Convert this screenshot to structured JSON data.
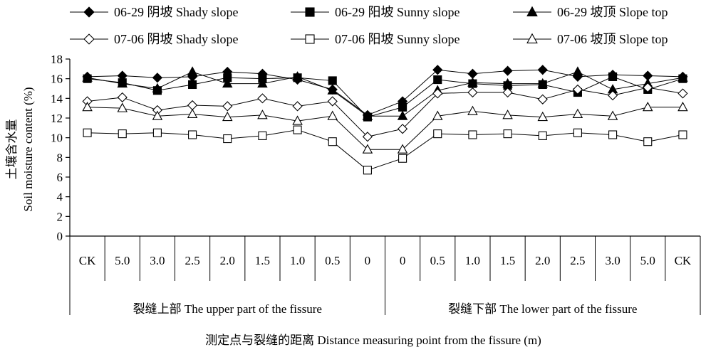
{
  "chart_data": {
    "type": "line",
    "title": "",
    "ylabel_cn": "土壤含水量",
    "ylabel_en": "Soil moisture content (%)",
    "xlabel": "测定点与裂缝的距离 Distance measuring point from the fissure (m)",
    "ylim": [
      0,
      18
    ],
    "yticks": [
      0,
      2,
      4,
      6,
      8,
      10,
      12,
      14,
      16,
      18
    ],
    "categories": [
      "CK",
      "5.0",
      "3.0",
      "2.5",
      "2.0",
      "1.5",
      "1.0",
      "0.5",
      "0",
      "0",
      "0.5",
      "1.0",
      "1.5",
      "2.0",
      "2.5",
      "3.0",
      "5.0",
      "CK"
    ],
    "groups": [
      {
        "label": "裂缝上部 The upper part of the fissure",
        "start": 0,
        "end": 8
      },
      {
        "label": "裂缝下部 The lower part of the fissure",
        "start": 9,
        "end": 17
      }
    ],
    "legend_position": "top",
    "grid": false,
    "series": [
      {
        "name": "06-29 阴坡 Shady slope",
        "marker": "diamond",
        "filled": true,
        "values": [
          16.2,
          16.3,
          16.1,
          16.2,
          16.7,
          16.5,
          15.9,
          14.9,
          12.3,
          13.7,
          16.9,
          16.5,
          16.8,
          16.9,
          16.2,
          16.4,
          16.3,
          16.2
        ]
      },
      {
        "name": "06-29 阳坡 Sunny slope",
        "marker": "square",
        "filled": true,
        "values": [
          16.0,
          15.6,
          14.8,
          15.4,
          16.1,
          16.0,
          16.1,
          15.8,
          12.1,
          13.1,
          15.9,
          15.5,
          15.3,
          15.4,
          14.6,
          16.2,
          14.9,
          16.0
        ]
      },
      {
        "name": "06-29 坡顶 Slope top",
        "marker": "triangle",
        "filled": true,
        "values": [
          16.1,
          15.5,
          15.0,
          16.7,
          15.5,
          15.5,
          16.2,
          14.8,
          12.2,
          12.2,
          14.8,
          15.6,
          15.5,
          15.5,
          16.7,
          14.9,
          15.5,
          16.1
        ]
      },
      {
        "name": "07-06 阴坡 Shady slope",
        "marker": "diamond",
        "filled": false,
        "values": [
          13.7,
          14.1,
          12.8,
          13.3,
          13.2,
          14.0,
          13.2,
          13.7,
          10.1,
          10.9,
          14.5,
          14.6,
          14.6,
          13.9,
          14.9,
          14.3,
          15.1,
          14.5
        ]
      },
      {
        "name": "07-06 阳坡 Sunny slope",
        "marker": "square",
        "filled": false,
        "values": [
          10.5,
          10.4,
          10.5,
          10.3,
          9.9,
          10.2,
          10.8,
          9.6,
          6.7,
          7.9,
          10.4,
          10.3,
          10.4,
          10.2,
          10.5,
          10.3,
          9.6,
          10.3
        ]
      },
      {
        "name": "07-06 坡顶 Slope top",
        "marker": "triangle",
        "filled": false,
        "values": [
          13.1,
          13.0,
          12.2,
          12.4,
          12.1,
          12.3,
          11.7,
          12.2,
          8.8,
          8.8,
          12.2,
          12.7,
          12.3,
          12.1,
          12.4,
          12.2,
          13.1,
          13.1
        ]
      }
    ]
  }
}
